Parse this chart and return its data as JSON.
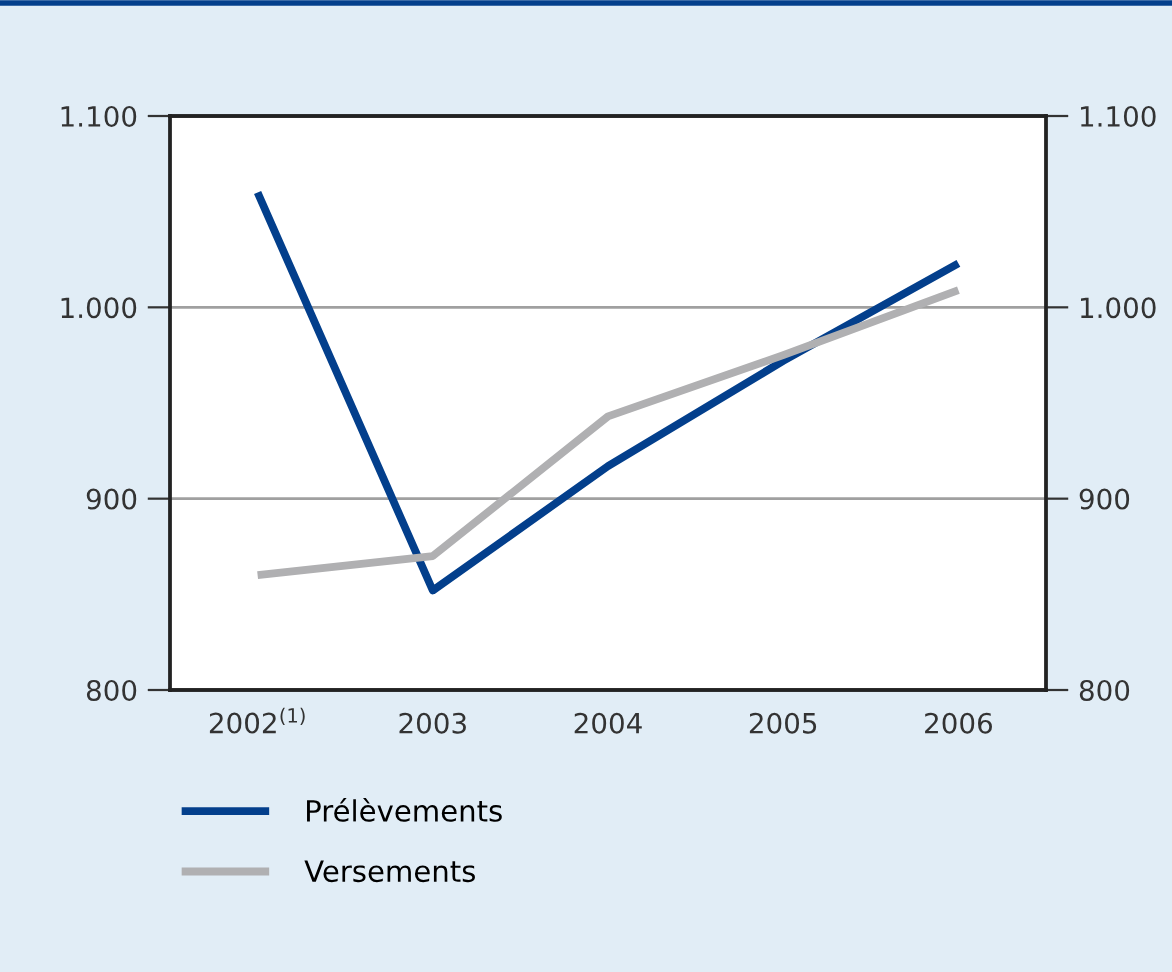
{
  "chart_data": {
    "type": "line",
    "categories": [
      "2002$^{(1)}$",
      "2003",
      "2004",
      "2005",
      "2006"
    ],
    "series": [
      {
        "name": "Prélèvements",
        "color": "#033f8c",
        "values": [
          1060,
          852,
          917,
          972,
          1023
        ]
      },
      {
        "name": "Versements",
        "color": "#b0b0b2",
        "values": [
          860,
          870,
          943,
          975,
          1009
        ]
      }
    ],
    "ylim": [
      800,
      1100
    ],
    "yticks": [
      {
        "value": 800,
        "label": "800"
      },
      {
        "value": 900,
        "label": "900"
      },
      {
        "value": 1000,
        "label": "1.000"
      },
      {
        "value": 1100,
        "label": "1.100"
      }
    ],
    "y2lim": [
      800,
      1100
    ],
    "y2ticks": [
      {
        "value": 800,
        "label": "800"
      },
      {
        "value": 900,
        "label": "900"
      },
      {
        "value": 1000,
        "label": "1.000"
      },
      {
        "value": 1100,
        "label": "1.100"
      }
    ],
    "grid": true,
    "legend": "bottom",
    "marker": "none",
    "line_style": "solid"
  }
}
